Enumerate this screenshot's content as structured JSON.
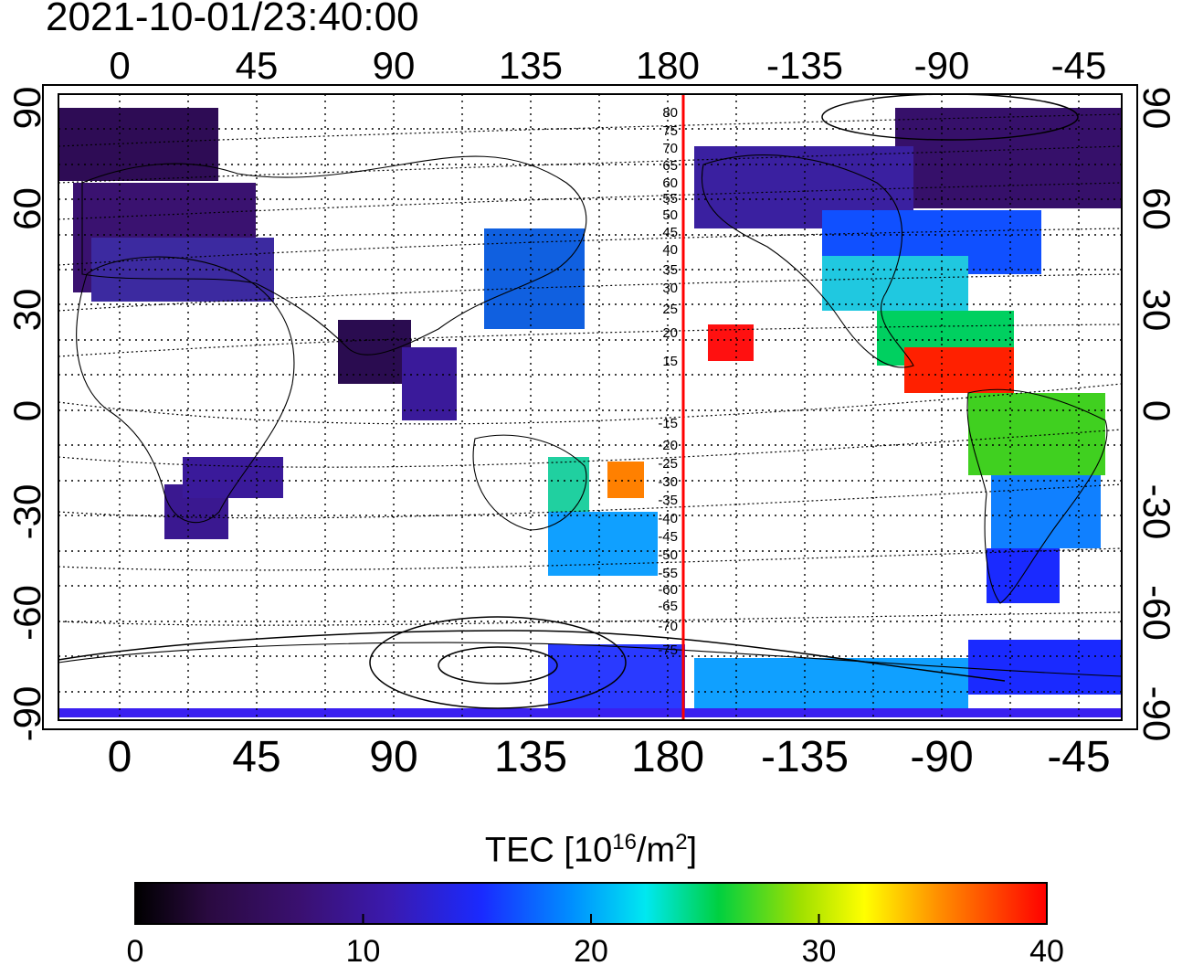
{
  "title": "2021-10-01/23:40:00",
  "map": {
    "lon_ticks_top": [
      "0",
      "45",
      "90",
      "135",
      "180",
      "-135",
      "-90",
      "-45"
    ],
    "lon_ticks_bottom": [
      "0",
      "45",
      "90",
      "135",
      "180",
      "-135",
      "-90",
      "-45"
    ],
    "lat_ticks_left": [
      "90",
      "60",
      "30",
      "0",
      "-30",
      "-60",
      "-90"
    ],
    "lat_ticks_right": [
      "90",
      "60",
      "30",
      "0",
      "-30",
      "-60",
      "-90"
    ],
    "magnetic_lat_labels_north": [
      "80",
      "75",
      "70",
      "65",
      "60",
      "55",
      "50",
      "45",
      "40",
      "35",
      "30",
      "25",
      "20",
      "15"
    ],
    "magnetic_lat_labels_south": [
      "-15",
      "-20",
      "-25",
      "-30",
      "-35",
      "-40",
      "-45",
      "-50",
      "-55",
      "-60",
      "-65",
      "-70",
      "-75"
    ],
    "marker_color": "#ff0000",
    "marker_longitude": -175
  },
  "colorbar": {
    "label_prefix": "TEC  [10",
    "label_sup1": "16",
    "label_mid": "/m",
    "label_sup2": "2",
    "label_suffix": "]",
    "ticks": [
      "0",
      "10",
      "20",
      "30",
      "40"
    ],
    "range": [
      0,
      40
    ],
    "colors": [
      "#000000",
      "#3a0a5c",
      "#3a1a9a",
      "#1a1aff",
      "#0070ff",
      "#00e8f0",
      "#00d040",
      "#a0e000",
      "#ffff00",
      "#ff8000",
      "#ff0000"
    ]
  }
}
